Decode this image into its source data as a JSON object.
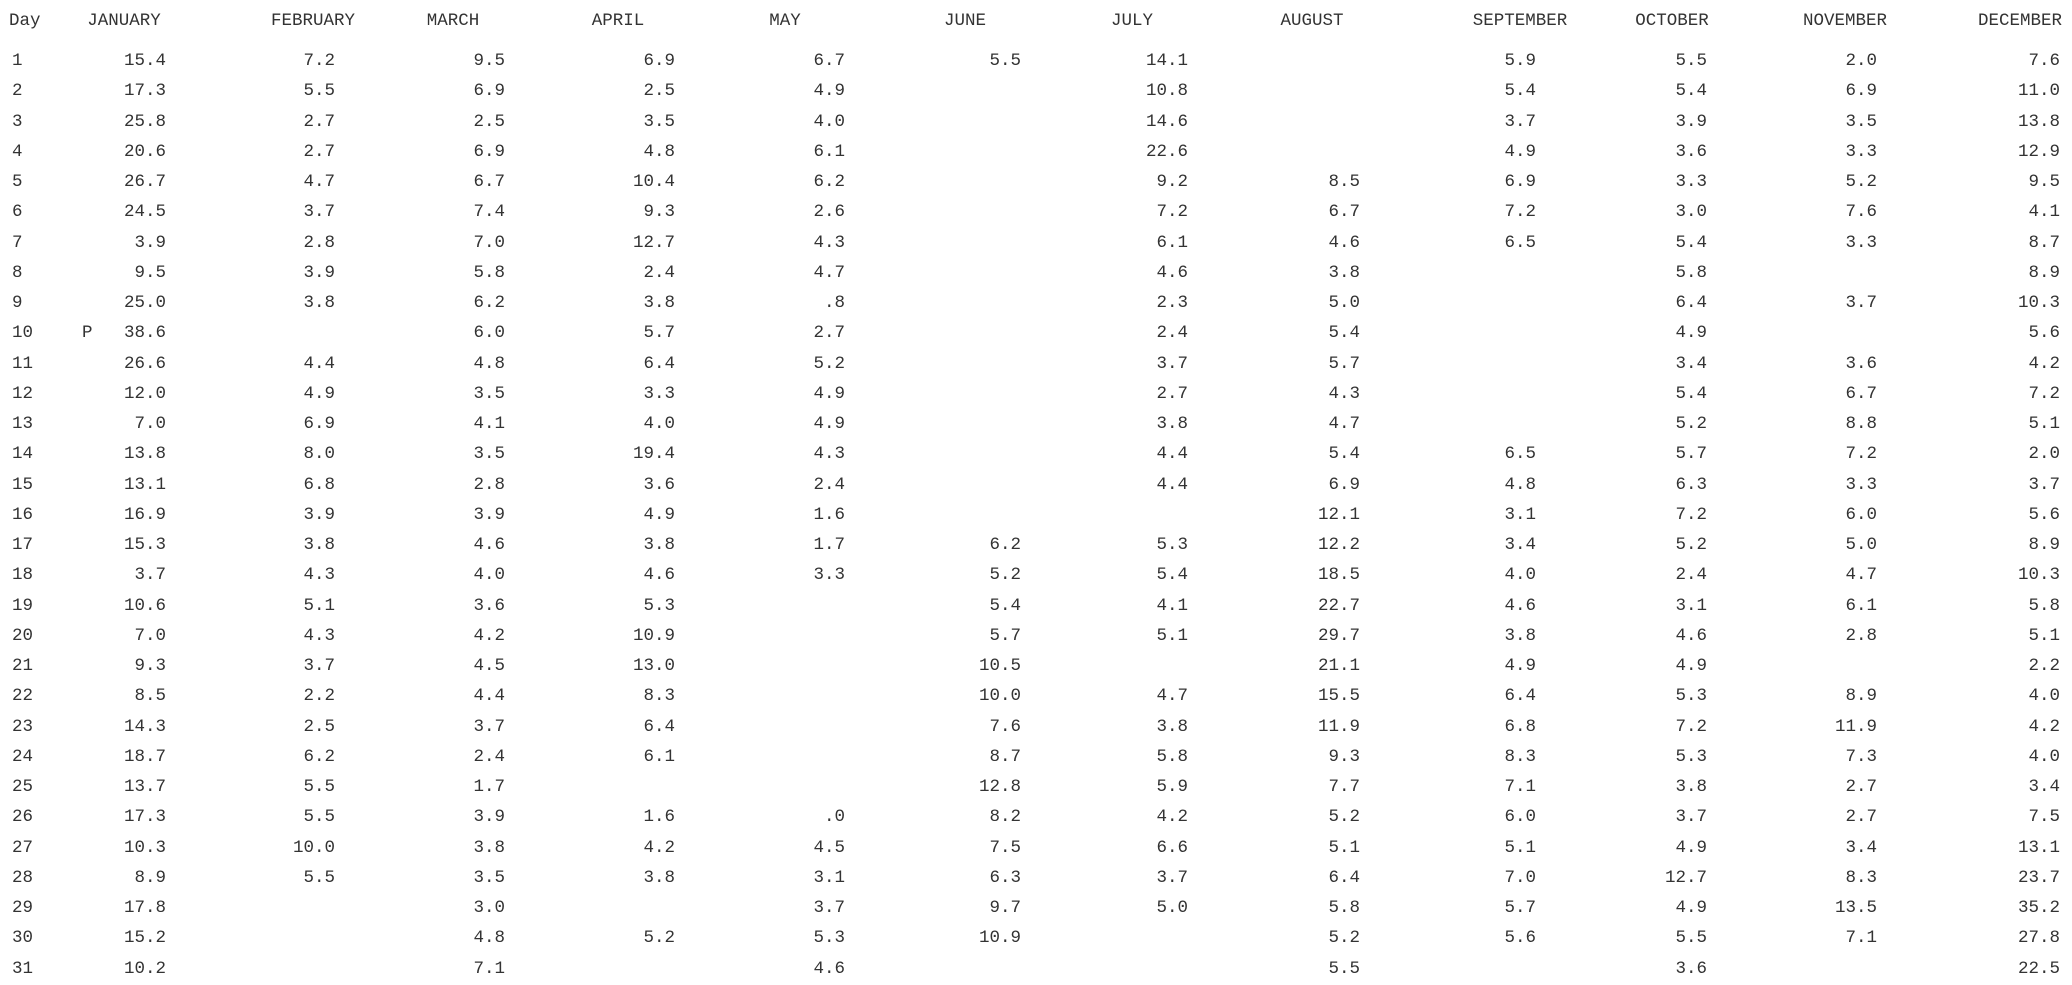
{
  "report": {
    "day_header": "Day",
    "months": [
      "JANUARY",
      "FEBRUARY",
      "MARCH",
      "APRIL",
      "MAY",
      "JUNE",
      "JULY",
      "AUGUST",
      "SEPTEMBER",
      "OCTOBER",
      "NOVEMBER",
      "DECEMBER"
    ],
    "rows": [
      {
        "day": "1",
        "flag": "",
        "values": [
          "15.4",
          "7.2",
          "9.5",
          "6.9",
          "6.7",
          "5.5",
          "14.1",
          "",
          "5.9",
          "5.5",
          "2.0",
          "7.6"
        ]
      },
      {
        "day": "2",
        "flag": "",
        "values": [
          "17.3",
          "5.5",
          "6.9",
          "2.5",
          "4.9",
          "",
          "10.8",
          "",
          "5.4",
          "5.4",
          "6.9",
          "11.0"
        ]
      },
      {
        "day": "3",
        "flag": "",
        "values": [
          "25.8",
          "2.7",
          "2.5",
          "3.5",
          "4.0",
          "",
          "14.6",
          "",
          "3.7",
          "3.9",
          "3.5",
          "13.8"
        ]
      },
      {
        "day": "4",
        "flag": "",
        "values": [
          "20.6",
          "2.7",
          "6.9",
          "4.8",
          "6.1",
          "",
          "22.6",
          "",
          "4.9",
          "3.6",
          "3.3",
          "12.9"
        ]
      },
      {
        "day": "5",
        "flag": "",
        "values": [
          "26.7",
          "4.7",
          "6.7",
          "10.4",
          "6.2",
          "",
          "9.2",
          "8.5",
          "6.9",
          "3.3",
          "5.2",
          "9.5"
        ]
      },
      {
        "day": "6",
        "flag": "",
        "values": [
          "24.5",
          "3.7",
          "7.4",
          "9.3",
          "2.6",
          "",
          "7.2",
          "6.7",
          "7.2",
          "3.0",
          "7.6",
          "4.1"
        ]
      },
      {
        "day": "7",
        "flag": "",
        "values": [
          "3.9",
          "2.8",
          "7.0",
          "12.7",
          "4.3",
          "",
          "6.1",
          "4.6",
          "6.5",
          "5.4",
          "3.3",
          "8.7"
        ]
      },
      {
        "day": "8",
        "flag": "",
        "values": [
          "9.5",
          "3.9",
          "5.8",
          "2.4",
          "4.7",
          "",
          "4.6",
          "3.8",
          "",
          "5.8",
          "",
          "8.9"
        ]
      },
      {
        "day": "9",
        "flag": "",
        "values": [
          "25.0",
          "3.8",
          "6.2",
          "3.8",
          ".8",
          "",
          "2.3",
          "5.0",
          "",
          "6.4",
          "3.7",
          "10.3"
        ]
      },
      {
        "day": "10",
        "flag": "P",
        "values": [
          "38.6",
          "",
          "6.0",
          "5.7",
          "2.7",
          "",
          "2.4",
          "5.4",
          "",
          "4.9",
          "",
          "5.6"
        ]
      },
      {
        "day": "11",
        "flag": "",
        "values": [
          "26.6",
          "4.4",
          "4.8",
          "6.4",
          "5.2",
          "",
          "3.7",
          "5.7",
          "",
          "3.4",
          "3.6",
          "4.2"
        ]
      },
      {
        "day": "12",
        "flag": "",
        "values": [
          "12.0",
          "4.9",
          "3.5",
          "3.3",
          "4.9",
          "",
          "2.7",
          "4.3",
          "",
          "5.4",
          "6.7",
          "7.2"
        ]
      },
      {
        "day": "13",
        "flag": "",
        "values": [
          "7.0",
          "6.9",
          "4.1",
          "4.0",
          "4.9",
          "",
          "3.8",
          "4.7",
          "",
          "5.2",
          "8.8",
          "5.1"
        ]
      },
      {
        "day": "14",
        "flag": "",
        "values": [
          "13.8",
          "8.0",
          "3.5",
          "19.4",
          "4.3",
          "",
          "4.4",
          "5.4",
          "6.5",
          "5.7",
          "7.2",
          "2.0"
        ]
      },
      {
        "day": "15",
        "flag": "",
        "values": [
          "13.1",
          "6.8",
          "2.8",
          "3.6",
          "2.4",
          "",
          "4.4",
          "6.9",
          "4.8",
          "6.3",
          "3.3",
          "3.7"
        ]
      },
      {
        "day": "16",
        "flag": "",
        "values": [
          "16.9",
          "3.9",
          "3.9",
          "4.9",
          "1.6",
          "",
          "",
          "12.1",
          "3.1",
          "7.2",
          "6.0",
          "5.6"
        ]
      },
      {
        "day": "17",
        "flag": "",
        "values": [
          "15.3",
          "3.8",
          "4.6",
          "3.8",
          "1.7",
          "6.2",
          "5.3",
          "12.2",
          "3.4",
          "5.2",
          "5.0",
          "8.9"
        ]
      },
      {
        "day": "18",
        "flag": "",
        "values": [
          "3.7",
          "4.3",
          "4.0",
          "4.6",
          "3.3",
          "5.2",
          "5.4",
          "18.5",
          "4.0",
          "2.4",
          "4.7",
          "10.3"
        ]
      },
      {
        "day": "19",
        "flag": "",
        "values": [
          "10.6",
          "5.1",
          "3.6",
          "5.3",
          "",
          "5.4",
          "4.1",
          "22.7",
          "4.6",
          "3.1",
          "6.1",
          "5.8"
        ]
      },
      {
        "day": "20",
        "flag": "",
        "values": [
          "7.0",
          "4.3",
          "4.2",
          "10.9",
          "",
          "5.7",
          "5.1",
          "29.7",
          "3.8",
          "4.6",
          "2.8",
          "5.1"
        ]
      },
      {
        "day": "21",
        "flag": "",
        "values": [
          "9.3",
          "3.7",
          "4.5",
          "13.0",
          "",
          "10.5",
          "",
          "21.1",
          "4.9",
          "4.9",
          "",
          "2.2"
        ]
      },
      {
        "day": "22",
        "flag": "",
        "values": [
          "8.5",
          "2.2",
          "4.4",
          "8.3",
          "",
          "10.0",
          "4.7",
          "15.5",
          "6.4",
          "5.3",
          "8.9",
          "4.0"
        ]
      },
      {
        "day": "23",
        "flag": "",
        "values": [
          "14.3",
          "2.5",
          "3.7",
          "6.4",
          "",
          "7.6",
          "3.8",
          "11.9",
          "6.8",
          "7.2",
          "11.9",
          "4.2"
        ]
      },
      {
        "day": "24",
        "flag": "",
        "values": [
          "18.7",
          "6.2",
          "2.4",
          "6.1",
          "",
          "8.7",
          "5.8",
          "9.3",
          "8.3",
          "5.3",
          "7.3",
          "4.0"
        ]
      },
      {
        "day": "25",
        "flag": "",
        "values": [
          "13.7",
          "5.5",
          "1.7",
          "",
          "",
          "12.8",
          "5.9",
          "7.7",
          "7.1",
          "3.8",
          "2.7",
          "3.4"
        ]
      },
      {
        "day": "26",
        "flag": "",
        "values": [
          "17.3",
          "5.5",
          "3.9",
          "1.6",
          ".0",
          "8.2",
          "4.2",
          "5.2",
          "6.0",
          "3.7",
          "2.7",
          "7.5"
        ]
      },
      {
        "day": "27",
        "flag": "",
        "values": [
          "10.3",
          "10.0",
          "3.8",
          "4.2",
          "4.5",
          "7.5",
          "6.6",
          "5.1",
          "5.1",
          "4.9",
          "3.4",
          "13.1"
        ]
      },
      {
        "day": "28",
        "flag": "",
        "values": [
          "8.9",
          "5.5",
          "3.5",
          "3.8",
          "3.1",
          "6.3",
          "3.7",
          "6.4",
          "7.0",
          "12.7",
          "8.3",
          "23.7"
        ]
      },
      {
        "day": "29",
        "flag": "",
        "values": [
          "17.8",
          "",
          "3.0",
          "",
          "3.7",
          "9.7",
          "5.0",
          "5.8",
          "5.7",
          "4.9",
          "13.5",
          "35.2"
        ]
      },
      {
        "day": "30",
        "flag": "",
        "values": [
          "15.2",
          "",
          "4.8",
          "5.2",
          "5.3",
          "10.9",
          "",
          "5.2",
          "5.6",
          "5.5",
          "7.1",
          "27.8"
        ]
      },
      {
        "day": "31",
        "flag": "",
        "values": [
          "10.2",
          "",
          "7.1",
          "",
          "4.6",
          "",
          "",
          "5.5",
          "",
          "3.6",
          "",
          "22.5"
        ]
      }
    ]
  }
}
